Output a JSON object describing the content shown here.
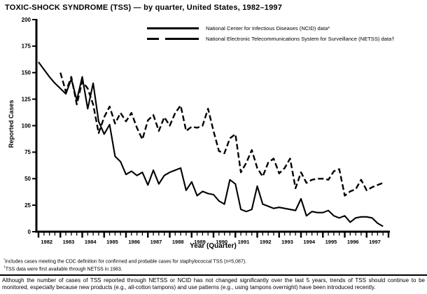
{
  "page_title": "TOXIC-SHOCK SYNDROME (TSS) — by quarter, United States, 1982–1997",
  "chart_data": {
    "type": "line",
    "title": "TOXIC-SHOCK SYNDROME (TSS) — by quarter, United States, 1982–1997",
    "xlabel": "Year (Quarter)",
    "ylabel": "Reported Cases",
    "ylim": [
      0,
      200
    ],
    "yticks": [
      0,
      25,
      50,
      75,
      100,
      125,
      150,
      175,
      200
    ],
    "x_years": [
      "1982",
      "1983",
      "1984",
      "1985",
      "1986",
      "1987",
      "1988",
      "1989",
      "1990",
      "1991",
      "1992",
      "1993",
      "1994",
      "1995",
      "1996",
      "1997"
    ],
    "quarters_per_year": 4,
    "grid": false,
    "legend_position": "top-center-inside",
    "line_color": "#000000",
    "background_color": "#ffffff",
    "series": [
      {
        "name": "National Center for Infectious Diseases (NCID) data*",
        "line_style": "solid",
        "start_year": 1982,
        "start_quarter": 1,
        "values": [
          160,
          153,
          146,
          140,
          135,
          130,
          144,
          124,
          146,
          116,
          140,
          104,
          92,
          101,
          71,
          66,
          54,
          57,
          53,
          56,
          44,
          58,
          45,
          53,
          56,
          58,
          60,
          39,
          47,
          34,
          38,
          36,
          35,
          29,
          26,
          49,
          45,
          21,
          19,
          21,
          43,
          26,
          24,
          22,
          23,
          22,
          21,
          20,
          31,
          15,
          19,
          18,
          18,
          20,
          15,
          13,
          15,
          9,
          13,
          14,
          14,
          13,
          8,
          5
        ]
      },
      {
        "name": "National Electronic Telecommunications System for Surveillance (NETSS) data†",
        "line_style": "dashed",
        "start_year": 1983,
        "start_quarter": 1,
        "values": [
          150,
          132,
          146,
          120,
          142,
          135,
          120,
          93,
          108,
          118,
          102,
          112,
          104,
          112,
          98,
          87,
          105,
          110,
          95,
          108,
          100,
          112,
          119,
          95,
          99,
          98,
          100,
          116,
          95,
          76,
          74,
          88,
          92,
          56,
          65,
          77,
          60,
          52,
          65,
          69,
          55,
          60,
          69,
          41,
          56,
          46,
          49,
          50,
          50,
          49,
          57,
          59,
          34,
          38,
          40,
          49,
          39,
          42,
          44,
          46
        ]
      }
    ]
  },
  "footnotes": {
    "f1_symbol": "*",
    "f1_text": "Includes cases meeting the CDC definition for confirmed and probable cases for staphylococcal TSS (n=5,087).",
    "f2_symbol": "†",
    "f2_text": "TSS data were first available through NETSS in 1983."
  },
  "note_text": "Although the number of cases of TSS reported through NETSS or NCID has not changed significantly over the last 5 years, trends of TSS should continue to be monitored, especially because new products (e.g., all-cotton tampons) and use patterns (e.g., using tampons overnight) have been introduced recently."
}
